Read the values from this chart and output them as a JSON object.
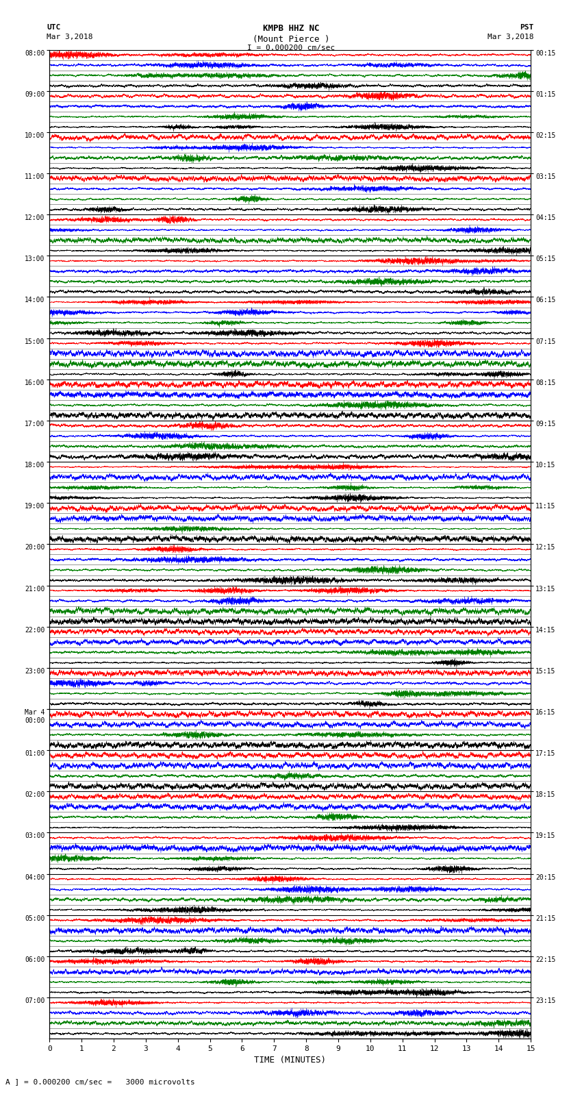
{
  "title_line1": "KMPB HHZ NC",
  "title_line2": "(Mount Pierce )",
  "scale_label": "I = 0.000200 cm/sec",
  "footer_label": "A ] = 0.000200 cm/sec =   3000 microvolts",
  "utc_label": "UTC",
  "utc_date": "Mar 3,2018",
  "pst_label": "PST",
  "pst_date": "Mar 3,2018",
  "xlabel": "TIME (MINUTES)",
  "left_times": [
    "08:00",
    "09:00",
    "10:00",
    "11:00",
    "12:00",
    "13:00",
    "14:00",
    "15:00",
    "16:00",
    "17:00",
    "18:00",
    "19:00",
    "20:00",
    "21:00",
    "22:00",
    "23:00",
    "Mar 4\n00:00",
    "01:00",
    "02:00",
    "03:00",
    "04:00",
    "05:00",
    "06:00",
    "07:00"
  ],
  "right_times": [
    "00:15",
    "01:15",
    "02:15",
    "03:15",
    "04:15",
    "05:15",
    "06:15",
    "07:15",
    "08:15",
    "09:15",
    "10:15",
    "11:15",
    "12:15",
    "13:15",
    "14:15",
    "15:15",
    "16:15",
    "17:15",
    "18:15",
    "19:15",
    "20:15",
    "21:15",
    "22:15",
    "23:15"
  ],
  "n_rows": 24,
  "n_traces_per_row": 4,
  "colors": [
    "red",
    "blue",
    "green",
    "black"
  ],
  "bg_color": "white",
  "x_ticks": [
    0,
    1,
    2,
    3,
    4,
    5,
    6,
    7,
    8,
    9,
    10,
    11,
    12,
    13,
    14,
    15
  ],
  "x_min": 0,
  "x_max": 15
}
